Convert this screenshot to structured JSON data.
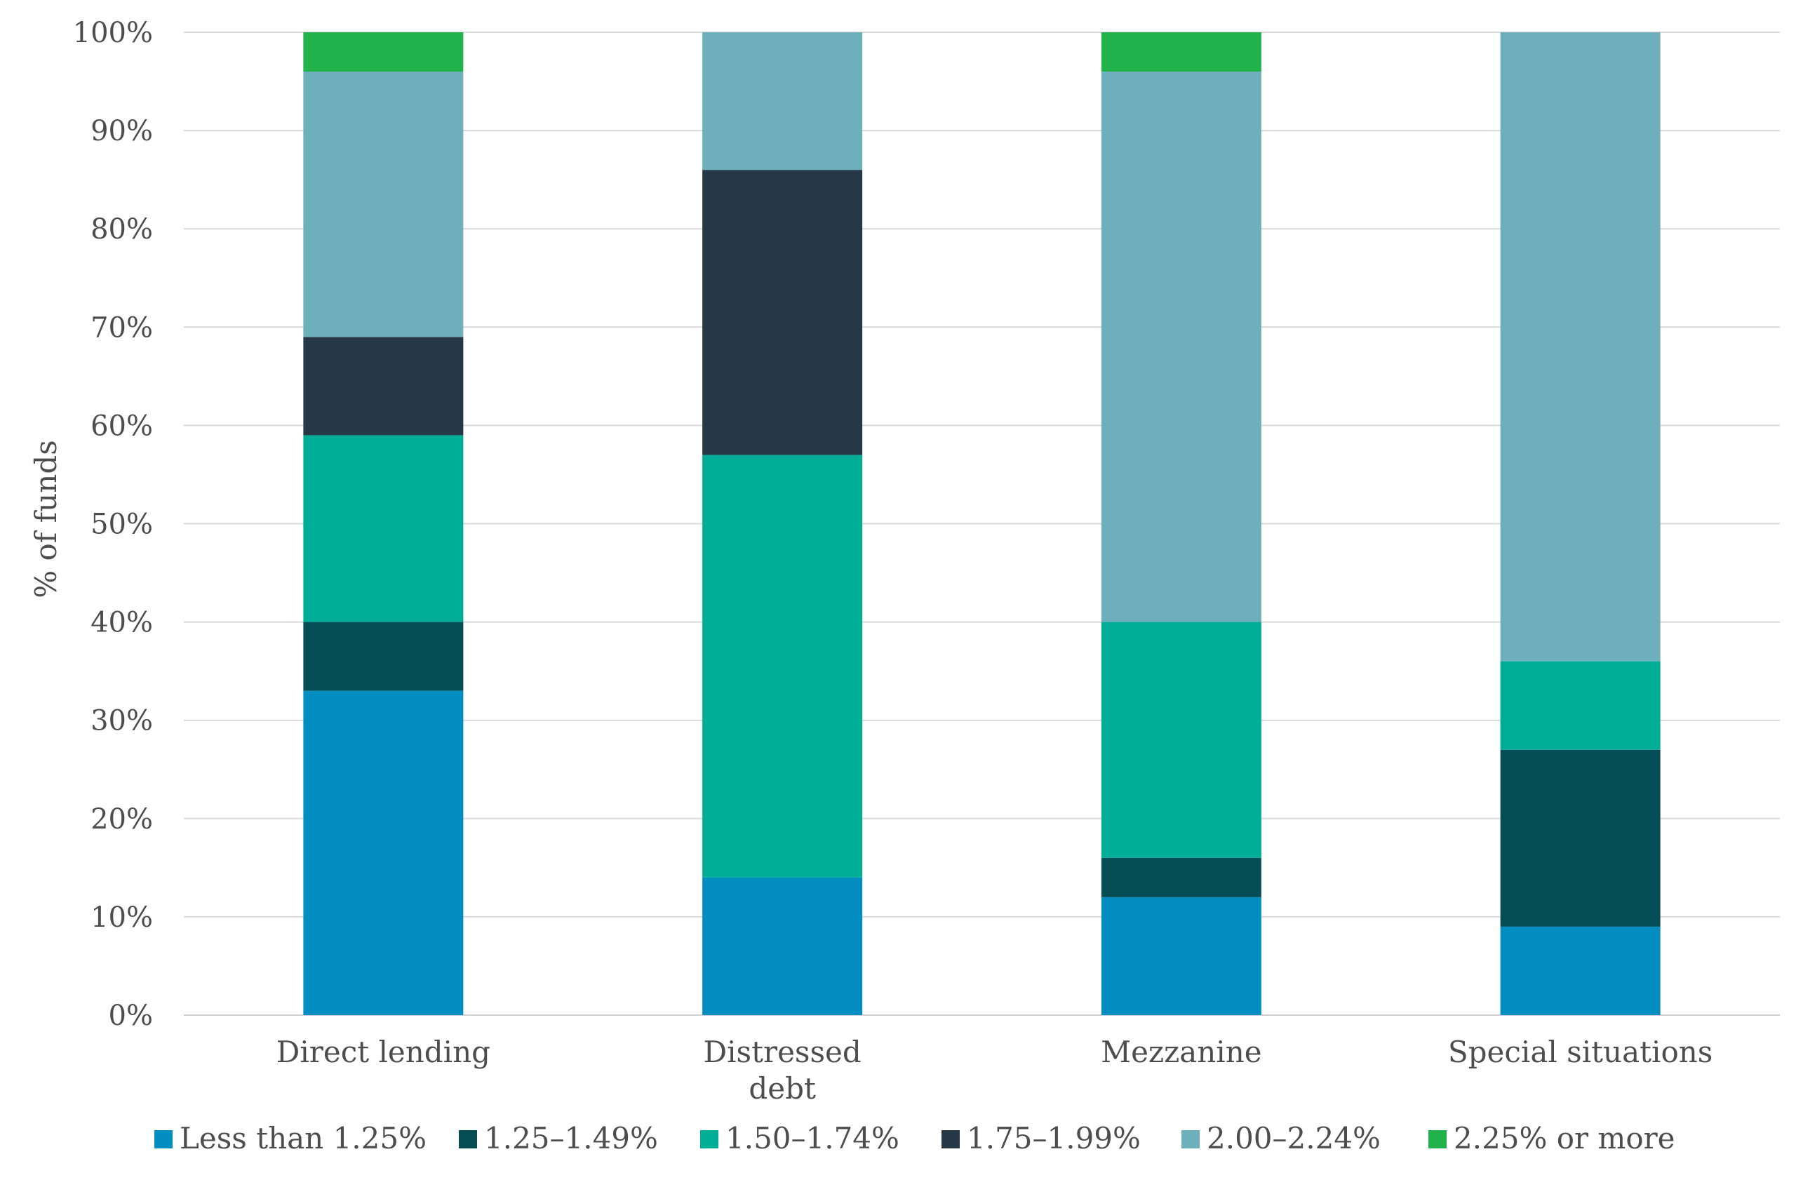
{
  "chart_data": {
    "type": "bar",
    "stacked": true,
    "title": "",
    "xlabel": "",
    "ylabel": "% of funds",
    "ylim": [
      0,
      100
    ],
    "y_ticks": [
      "0%",
      "10%",
      "20%",
      "30%",
      "40%",
      "50%",
      "60%",
      "70%",
      "80%",
      "90%",
      "100%"
    ],
    "categories": [
      [
        "Direct lending"
      ],
      [
        "Distressed",
        "debt"
      ],
      [
        "Mezzanine"
      ],
      [
        "Special situations"
      ]
    ],
    "series": [
      {
        "name": "Less than 1.25%",
        "color": "#028EC0",
        "values": [
          33,
          14,
          12,
          9
        ]
      },
      {
        "name": "1.25–1.49%",
        "color": "#064D56",
        "values": [
          7,
          0,
          4,
          18
        ]
      },
      {
        "name": "1.50–1.74%",
        "color": "#00AD96",
        "values": [
          19,
          43,
          24,
          9
        ]
      },
      {
        "name": "1.75–1.99%",
        "color": "#263746",
        "values": [
          10,
          29,
          0,
          0
        ]
      },
      {
        "name": "2.00–2.24%",
        "color": "#6EAFBC",
        "values": [
          27,
          14,
          56,
          64
        ]
      },
      {
        "name": "2.25% or more",
        "color": "#22B24C",
        "values": [
          4,
          0,
          4,
          0
        ]
      }
    ],
    "grid": true,
    "legend_position": "bottom"
  }
}
